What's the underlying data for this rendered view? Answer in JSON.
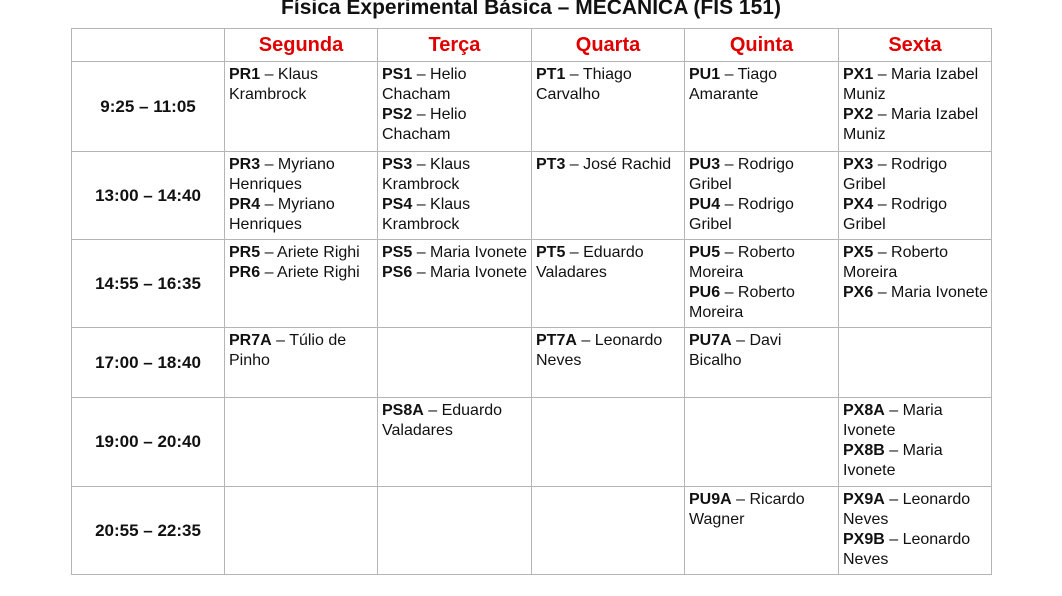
{
  "title": "Física Experimental Básica – MECÂNICA (FIS 151)",
  "days": [
    "Segunda",
    "Terça",
    "Quarta",
    "Quinta",
    "Sexta"
  ],
  "colors": {
    "header_text": "#e00000",
    "border": "#b5b5b5"
  },
  "rows": [
    {
      "time": "9:25 – 11:05",
      "cells": [
        [
          {
            "code": "PR1",
            "name": " – Klaus Krambrock"
          }
        ],
        [
          {
            "code": "PS1",
            "name": " – Helio Chacham"
          },
          {
            "code": "PS2",
            "name": " – Helio Chacham"
          }
        ],
        [
          {
            "code": "PT1",
            "name": " – Thiago Carvalho"
          }
        ],
        [
          {
            "code": "PU1",
            "name": " – Tiago Amarante"
          }
        ],
        [
          {
            "code": "PX1",
            "name": " – Maria Izabel Muniz"
          },
          {
            "code": "PX2",
            "name": " – Maria Izabel Muniz"
          }
        ]
      ]
    },
    {
      "time": "13:00 – 14:40",
      "cells": [
        [
          {
            "code": "PR3",
            "name": " – Myriano Henriques"
          },
          {
            "code": "PR4",
            "name": " – Myriano Henriques"
          }
        ],
        [
          {
            "code": "PS3",
            "name": " – Klaus Krambrock"
          },
          {
            "code": "PS4",
            "name": " – Klaus Krambrock"
          }
        ],
        [
          {
            "code": "PT3",
            "name": " – José Rachid"
          }
        ],
        [
          {
            "code": "PU3",
            "name": " – Rodrigo Gribel"
          },
          {
            "code": "PU4",
            "name": " – Rodrigo Gribel"
          }
        ],
        [
          {
            "code": "PX3",
            "name": " – Rodrigo Gribel"
          },
          {
            "code": "PX4",
            "name": " – Rodrigo Gribel"
          }
        ]
      ]
    },
    {
      "time": "14:55 – 16:35",
      "cells": [
        [
          {
            "code": "PR5",
            "name": " – Ariete Righi"
          },
          {
            "code": "PR6",
            "name": " – Ariete Righi"
          }
        ],
        [
          {
            "code": "PS5",
            "name": " – Maria Ivonete"
          },
          {
            "code": "PS6",
            "name": " – Maria Ivonete"
          }
        ],
        [
          {
            "code": "PT5",
            "name": " – Eduardo Valadares"
          }
        ],
        [
          {
            "code": "PU5",
            "name": " – Roberto Moreira"
          },
          {
            "code": "PU6",
            "name": " – Roberto Moreira"
          }
        ],
        [
          {
            "code": "PX5",
            "name": " – Roberto Moreira"
          },
          {
            "code": "PX6",
            "name": " – Maria Ivonete"
          }
        ]
      ]
    },
    {
      "time": "17:00 – 18:40",
      "cells": [
        [
          {
            "code": "PR7A",
            "name": " – Túlio de Pinho"
          }
        ],
        [],
        [
          {
            "code": "PT7A",
            "name": " – Leonardo Neves"
          }
        ],
        [
          {
            "code": "PU7A",
            "name": " – Davi Bicalho"
          }
        ],
        []
      ]
    },
    {
      "time": "19:00 – 20:40",
      "cells": [
        [],
        [
          {
            "code": "PS8A",
            "name": " – Eduardo Valadares"
          }
        ],
        [],
        [],
        [
          {
            "code": "PX8A",
            "name": " – Maria Ivonete"
          },
          {
            "code": "PX8B",
            "name": " – Maria Ivonete"
          }
        ]
      ]
    },
    {
      "time": "20:55 – 22:35",
      "cells": [
        [],
        [],
        [],
        [
          {
            "code": "PU9A",
            "name": " – Ricardo Wagner"
          }
        ],
        [
          {
            "code": "PX9A",
            "name": " – Leonardo Neves"
          },
          {
            "code": "PX9B",
            "name": " – Leonardo Neves"
          }
        ]
      ]
    }
  ]
}
